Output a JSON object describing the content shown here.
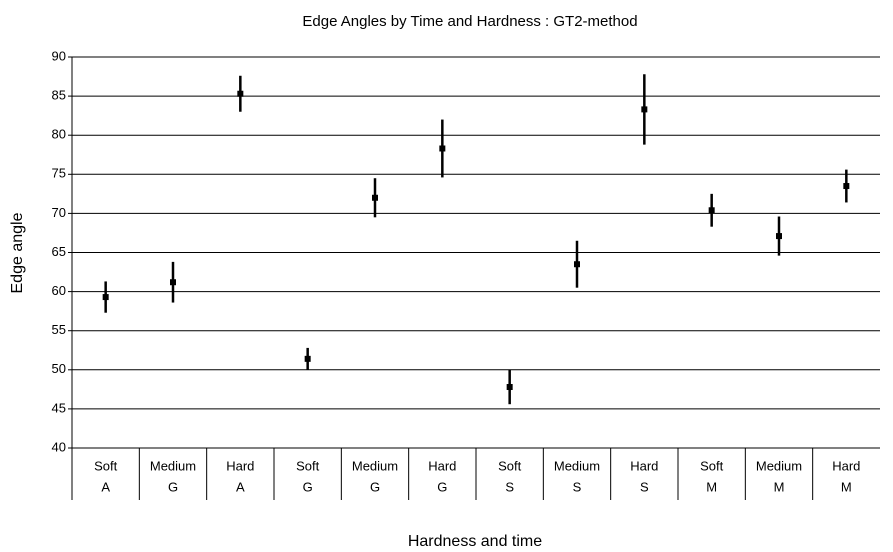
{
  "chart_data": {
    "type": "errorbar",
    "title": "Edge Angles by Time and Hardness : GT2-method",
    "xlabel": "Hardness and time",
    "ylabel": "Edge angle",
    "categories": [
      [
        "Soft",
        "A"
      ],
      [
        "Medium",
        "G"
      ],
      [
        "Hard",
        "A"
      ],
      [
        "Soft",
        "G"
      ],
      [
        "Medium",
        "G"
      ],
      [
        "Hard",
        "G"
      ],
      [
        "Soft",
        "S"
      ],
      [
        "Medium",
        "S"
      ],
      [
        "Hard",
        "S"
      ],
      [
        "Soft",
        "M"
      ],
      [
        "Medium",
        "M"
      ],
      [
        "Hard",
        "M"
      ]
    ],
    "values": [
      59.3,
      61.2,
      85.3,
      51.4,
      72,
      78.3,
      47.8,
      63.5,
      83.3,
      70.4,
      67.1,
      73.5
    ],
    "errors": [
      2.0,
      2.6,
      2.3,
      1.4,
      2.5,
      3.7,
      2.2,
      3.0,
      4.5,
      2.1,
      2.5,
      2.1
    ],
    "color": "#000000",
    "ylim": [
      40,
      90
    ],
    "yticks": [
      40,
      45,
      50,
      55,
      60,
      65,
      70,
      75,
      80,
      85,
      90
    ],
    "grid": true
  }
}
